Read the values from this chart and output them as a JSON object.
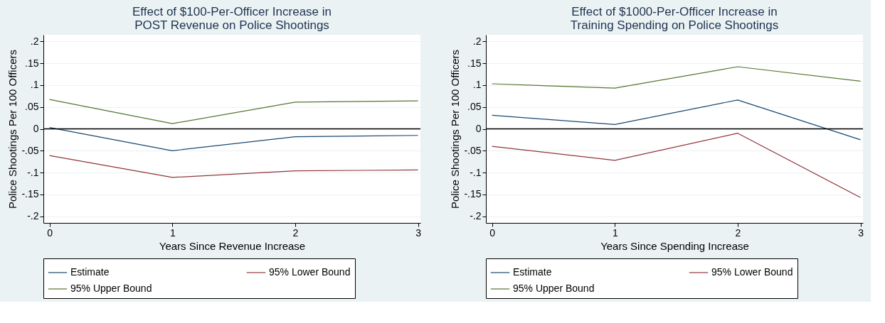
{
  "chart_data": [
    {
      "type": "line",
      "title": "Effect of $100-Per-Officer Increase in\nPOST Revenue on Police Shootings",
      "xlabel": "Years Since Revenue Increase",
      "ylabel": "Police Shootings Per 100 Officers",
      "x": [
        0,
        1,
        2,
        3
      ],
      "xlim": [
        -0.05,
        3.02
      ],
      "xticks": [
        0,
        1,
        2,
        3
      ],
      "ylim": [
        -0.215,
        0.215
      ],
      "yticks": [
        {
          "value": 0.2,
          "label": ".2"
        },
        {
          "value": 0.15,
          "label": ".15"
        },
        {
          "value": 0.1,
          "label": ".1"
        },
        {
          "value": 0.05,
          "label": ".05"
        },
        0,
        {
          "value": -0.05,
          "label": "-.05"
        },
        {
          "value": -0.1,
          "label": "-.1"
        },
        {
          "value": -0.15,
          "label": "-.15"
        },
        {
          "value": -0.2,
          "label": "-.2"
        }
      ],
      "series": [
        {
          "name": "Estimate",
          "color": "#1a476f",
          "values": [
            0.003,
            -0.05,
            -0.018,
            -0.015
          ]
        },
        {
          "name": "95% Lower Bound",
          "color": "#90353b",
          "values": [
            -0.061,
            -0.111,
            -0.096,
            -0.094
          ]
        },
        {
          "name": "95% Upper Bound",
          "color": "#55752f",
          "values": [
            0.067,
            0.012,
            0.061,
            0.064
          ]
        }
      ],
      "ref_lines": [
        {
          "axis": "y",
          "value": 0,
          "color": "#000000"
        }
      ],
      "grid": "y",
      "legend": "bottom",
      "marker": "none",
      "line_style": "solid"
    },
    {
      "type": "line",
      "title": "Effect of $1000-Per-Officer Increase in\nTraining Spending on Police Shootings",
      "xlabel": "Years Since Spending Increase",
      "ylabel": "Police Shootings Per 100 Officers",
      "x": [
        0,
        1,
        2,
        3
      ],
      "xlim": [
        -0.05,
        3.02
      ],
      "xticks": [
        0,
        1,
        2,
        3
      ],
      "ylim": [
        -0.215,
        0.215
      ],
      "yticks": [
        {
          "value": 0.2,
          "label": ".2"
        },
        {
          "value": 0.15,
          "label": ".15"
        },
        {
          "value": 0.1,
          "label": ".1"
        },
        {
          "value": 0.05,
          "label": ".05"
        },
        0,
        {
          "value": -0.05,
          "label": "-.05"
        },
        {
          "value": -0.1,
          "label": "-.1"
        },
        {
          "value": -0.15,
          "label": "-.15"
        },
        {
          "value": -0.2,
          "label": "-.2"
        }
      ],
      "series": [
        {
          "name": "Estimate",
          "color": "#1a476f",
          "values": [
            0.031,
            0.01,
            0.066,
            -0.025
          ]
        },
        {
          "name": "95% Lower Bound",
          "color": "#90353b",
          "values": [
            -0.04,
            -0.072,
            -0.01,
            -0.157
          ]
        },
        {
          "name": "95% Upper Bound",
          "color": "#55752f",
          "values": [
            0.103,
            0.093,
            0.142,
            0.109
          ]
        }
      ],
      "ref_lines": [
        {
          "axis": "y",
          "value": 0,
          "color": "#000000"
        }
      ],
      "grid": "y",
      "legend": "bottom",
      "marker": "none",
      "line_style": "solid"
    }
  ]
}
